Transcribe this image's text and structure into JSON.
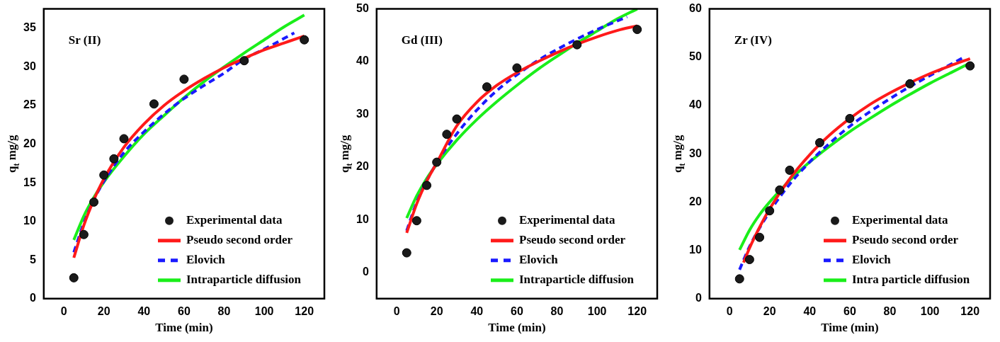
{
  "chart_data": [
    {
      "type": "line",
      "annotations": [
        "Sr (II)"
      ],
      "xlabel": "Time (min)",
      "ylabel": "q$_{t}$ mg/g",
      "xlim": [
        -10,
        130
      ],
      "xticks": [
        0,
        20,
        40,
        60,
        80,
        100,
        120
      ],
      "ylim": [
        0,
        37.5
      ],
      "yticks": [
        0,
        5,
        10,
        15,
        20,
        25,
        30,
        35
      ],
      "grid": false,
      "legend": "bottom right",
      "series": [
        {
          "name": "Experimental data",
          "type": "scatter",
          "marker": "circle",
          "color": "#1a1a1a",
          "x": [
            5,
            10,
            15,
            20,
            25,
            30,
            45,
            60,
            90,
            120
          ],
          "values": [
            2.7,
            8.3,
            12.5,
            16,
            18.1,
            20.7,
            25.2,
            28.4,
            30.8,
            33.5
          ]
        },
        {
          "name": "Pseudo second order",
          "type": "line",
          "line_style": "solid",
          "color": "#ff1a1a",
          "x": [
            5,
            10,
            15,
            20,
            30,
            40,
            50,
            60,
            70,
            80,
            90,
            100,
            110,
            120
          ],
          "values": [
            5.3,
            9.5,
            12.8,
            15.5,
            19.6,
            22.6,
            25,
            26.9,
            28.5,
            29.9,
            31.1,
            32.2,
            33.1,
            34.0
          ]
        },
        {
          "name": "Elovich",
          "type": "line",
          "line_style": "dashed",
          "color": "#1a1aff",
          "x": [
            5,
            10,
            15,
            20,
            30,
            40,
            50,
            60,
            70,
            80,
            90,
            100,
            115
          ],
          "values": [
            6,
            9.8,
            12.8,
            15.2,
            18.9,
            21.6,
            23.9,
            25.9,
            27.6,
            29.2,
            31,
            32.3,
            34.4
          ]
        },
        {
          "name": "Intraparticle diffusion",
          "type": "line",
          "line_style": "solid",
          "color": "#1aee1a",
          "x": [
            5,
            10,
            15,
            20,
            30,
            40,
            50,
            60,
            70,
            80,
            90,
            100,
            110,
            120
          ],
          "values": [
            7.6,
            10.7,
            13.1,
            15.1,
            18.4,
            21.3,
            23.7,
            26.0,
            28.1,
            30.0,
            31.8,
            33.5,
            35.2,
            36.7
          ]
        }
      ]
    },
    {
      "type": "line",
      "annotations": [
        "Gd (III)"
      ],
      "xlabel": "Time (min)",
      "ylabel": "q$_{t}$ mg/g",
      "xlim": [
        -10,
        130
      ],
      "xticks": [
        0,
        20,
        40,
        60,
        80,
        100,
        120
      ],
      "ylim": [
        -5,
        50
      ],
      "yticks": [
        0,
        10,
        20,
        30,
        40,
        50
      ],
      "grid": false,
      "legend": "bottom right",
      "series": [
        {
          "name": "Experimental data",
          "type": "scatter",
          "marker": "circle",
          "color": "#1a1a1a",
          "x": [
            5,
            10,
            15,
            20,
            25,
            30,
            45,
            60,
            90,
            120
          ],
          "values": [
            3.7,
            9.8,
            16.5,
            20.9,
            26.2,
            29.1,
            35.2,
            38.8,
            43.2,
            46.1
          ]
        },
        {
          "name": "Pseudo second order",
          "type": "line",
          "line_style": "solid",
          "color": "#ff1a1a",
          "x": [
            5,
            10,
            15,
            20,
            30,
            40,
            50,
            60,
            70,
            80,
            90,
            100,
            110,
            120
          ],
          "values": [
            7.5,
            13,
            17.3,
            20.8,
            27.8,
            32.3,
            35.5,
            37.9,
            39.9,
            41.7,
            43.3,
            44.7,
            45.9,
            46.8
          ]
        },
        {
          "name": "Elovich",
          "type": "line",
          "line_style": "dashed",
          "color": "#1a1aff",
          "x": [
            5,
            10,
            20,
            30,
            40,
            50,
            60,
            70,
            80,
            90,
            100,
            115
          ],
          "values": [
            7.9,
            13.3,
            20.8,
            26.3,
            30.8,
            34.5,
            37.5,
            40.1,
            42.3,
            44.3,
            46.1,
            48.5
          ]
        },
        {
          "name": "Intraparticle diffusion",
          "type": "line",
          "line_style": "solid",
          "color": "#1aee1a",
          "x": [
            5,
            10,
            15,
            20,
            30,
            40,
            50,
            60,
            70,
            80,
            90,
            100,
            110,
            120
          ],
          "values": [
            10.3,
            14.5,
            17.8,
            20.5,
            25.1,
            29.0,
            32.4,
            35.5,
            38.4,
            41.0,
            43.5,
            45.8,
            48.1,
            50.0
          ]
        }
      ]
    },
    {
      "type": "line",
      "annotations": [
        "Zr (IV)"
      ],
      "xlabel": "Time (min)",
      "ylabel": "q$_{t}$ mg/g",
      "xlim": [
        -10,
        130
      ],
      "xticks": [
        0,
        20,
        40,
        60,
        80,
        100,
        120
      ],
      "ylim": [
        0,
        60
      ],
      "yticks": [
        0,
        10,
        20,
        30,
        40,
        50,
        60
      ],
      "grid": false,
      "legend": "bottom right",
      "series": [
        {
          "name": "Experimental data",
          "type": "scatter",
          "marker": "circle",
          "color": "#1a1a1a",
          "x": [
            5,
            10,
            15,
            20,
            25,
            30,
            45,
            60,
            90,
            120
          ],
          "values": [
            4.1,
            8.1,
            12.7,
            18.2,
            22.5,
            26.6,
            32.3,
            37.3,
            44.5,
            48.2
          ]
        },
        {
          "name": "Pseudo second order",
          "type": "line",
          "line_style": "solid",
          "color": "#ff1a1a",
          "x": [
            7,
            10,
            15,
            20,
            30,
            40,
            50,
            60,
            70,
            80,
            90,
            100,
            110,
            120
          ],
          "values": [
            7.5,
            10.5,
            14.8,
            18.6,
            24.8,
            29.8,
            33.9,
            37.3,
            40.2,
            42.6,
            44.7,
            46.6,
            48.2,
            49.7
          ]
        },
        {
          "name": "Elovich",
          "type": "line",
          "line_style": "dashed",
          "color": "#1a1aff",
          "x": [
            5,
            10,
            20,
            30,
            40,
            50,
            60,
            70,
            80,
            90,
            100,
            117
          ],
          "values": [
            6,
            10.8,
            18,
            23.7,
            28.3,
            32.2,
            35.7,
            38.7,
            41.4,
            43.9,
            46.2,
            50
          ]
        },
        {
          "name": "Intra particle diffusion",
          "type": "line",
          "line_style": "solid",
          "color": "#1aee1a",
          "x": [
            5,
            10,
            15,
            20,
            30,
            40,
            50,
            60,
            70,
            80,
            90,
            100,
            110,
            120
          ],
          "values": [
            10.1,
            14.2,
            17.4,
            20.0,
            24.5,
            28.3,
            31.6,
            34.6,
            37.3,
            39.9,
            42.3,
            44.6,
            46.7,
            48.8
          ]
        }
      ]
    }
  ]
}
